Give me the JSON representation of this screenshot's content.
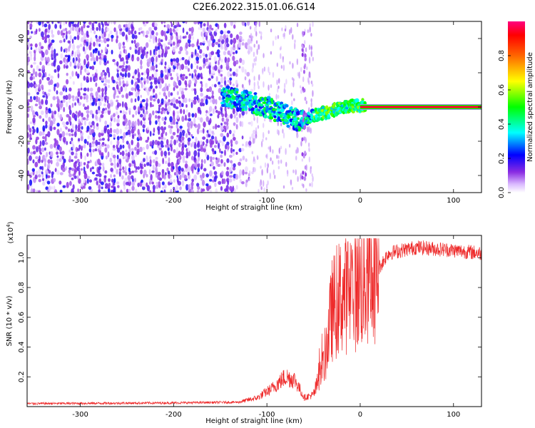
{
  "page_title": "C2E6.2022.315.01.06.G14",
  "chart_data": [
    {
      "type": "heatmap",
      "xlabel": "Height of straight line (km)",
      "ylabel": "Frequency (Hz)",
      "xlim": [
        -357,
        130
      ],
      "ylim": [
        -50,
        50
      ],
      "x_ticks": [
        -300,
        -200,
        -100,
        0,
        100
      ],
      "y_ticks": [
        -40,
        -20,
        0,
        20,
        40
      ],
      "colorbar": {
        "label": "Normalized spectral amplitude",
        "range": [
          0,
          1
        ],
        "ticks": [
          "0.0",
          "0.2",
          "0.4",
          "0.6",
          "0.8"
        ],
        "tick_values": [
          0,
          0.2,
          0.4,
          0.6,
          0.8
        ],
        "colormap": "hsv-rainbow",
        "stops": [
          {
            "v": 0.0,
            "color": "#ffffff"
          },
          {
            "v": 0.05,
            "color": "#d9b8ff"
          },
          {
            "v": 0.12,
            "color": "#8a2be2"
          },
          {
            "v": 0.22,
            "color": "#0000ff"
          },
          {
            "v": 0.35,
            "color": "#00ffff"
          },
          {
            "v": 0.5,
            "color": "#00ff00"
          },
          {
            "v": 0.65,
            "color": "#ffff00"
          },
          {
            "v": 0.8,
            "color": "#ff6600"
          },
          {
            "v": 0.92,
            "color": "#ff0000"
          },
          {
            "v": 1.0,
            "color": "#ff0080"
          }
        ]
      },
      "dominant_ridge": [
        {
          "x": -145,
          "y": 6
        },
        {
          "x": -120,
          "y": 3
        },
        {
          "x": -100,
          "y": 0
        },
        {
          "x": -80,
          "y": -5
        },
        {
          "x": -65,
          "y": -8
        },
        {
          "x": -50,
          "y": -5
        },
        {
          "x": -35,
          "y": -3
        },
        {
          "x": -20,
          "y": 0
        },
        {
          "x": 0,
          "y": 1
        },
        {
          "x": 130,
          "y": 0
        }
      ]
    },
    {
      "type": "line",
      "xlabel": "Height of straight line (km)",
      "ylabel": "SNR (10 * v/v)",
      "y_multiplier": "(x10",
      "y_multiplier_exp": "4",
      "y_multiplier_close": ")",
      "xlim": [
        -357,
        130
      ],
      "ylim": [
        0,
        1.15
      ],
      "x_ticks": [
        -300,
        -200,
        -100,
        0,
        100
      ],
      "y_ticks": [
        0.2,
        0.4,
        0.6,
        0.8,
        1.0
      ],
      "y_tick_labels": [
        "0.2",
        "0.4",
        "0.6",
        "0.8",
        "1.0"
      ],
      "series_color": "#ee2a2a",
      "envelope": [
        {
          "x": -357,
          "y": 0.02
        },
        {
          "x": -200,
          "y": 0.025
        },
        {
          "x": -130,
          "y": 0.03
        },
        {
          "x": -110,
          "y": 0.06
        },
        {
          "x": -95,
          "y": 0.12
        },
        {
          "x": -80,
          "y": 0.2
        },
        {
          "x": -70,
          "y": 0.18
        },
        {
          "x": -60,
          "y": 0.06
        },
        {
          "x": -50,
          "y": 0.08
        },
        {
          "x": -40,
          "y": 0.25
        },
        {
          "x": -30,
          "y": 0.65
        },
        {
          "x": -20,
          "y": 0.75
        },
        {
          "x": -10,
          "y": 0.78
        },
        {
          "x": 0,
          "y": 0.82
        },
        {
          "x": 15,
          "y": 0.88
        },
        {
          "x": 30,
          "y": 1.03
        },
        {
          "x": 60,
          "y": 1.07
        },
        {
          "x": 100,
          "y": 1.05
        },
        {
          "x": 130,
          "y": 1.03
        }
      ]
    }
  ]
}
